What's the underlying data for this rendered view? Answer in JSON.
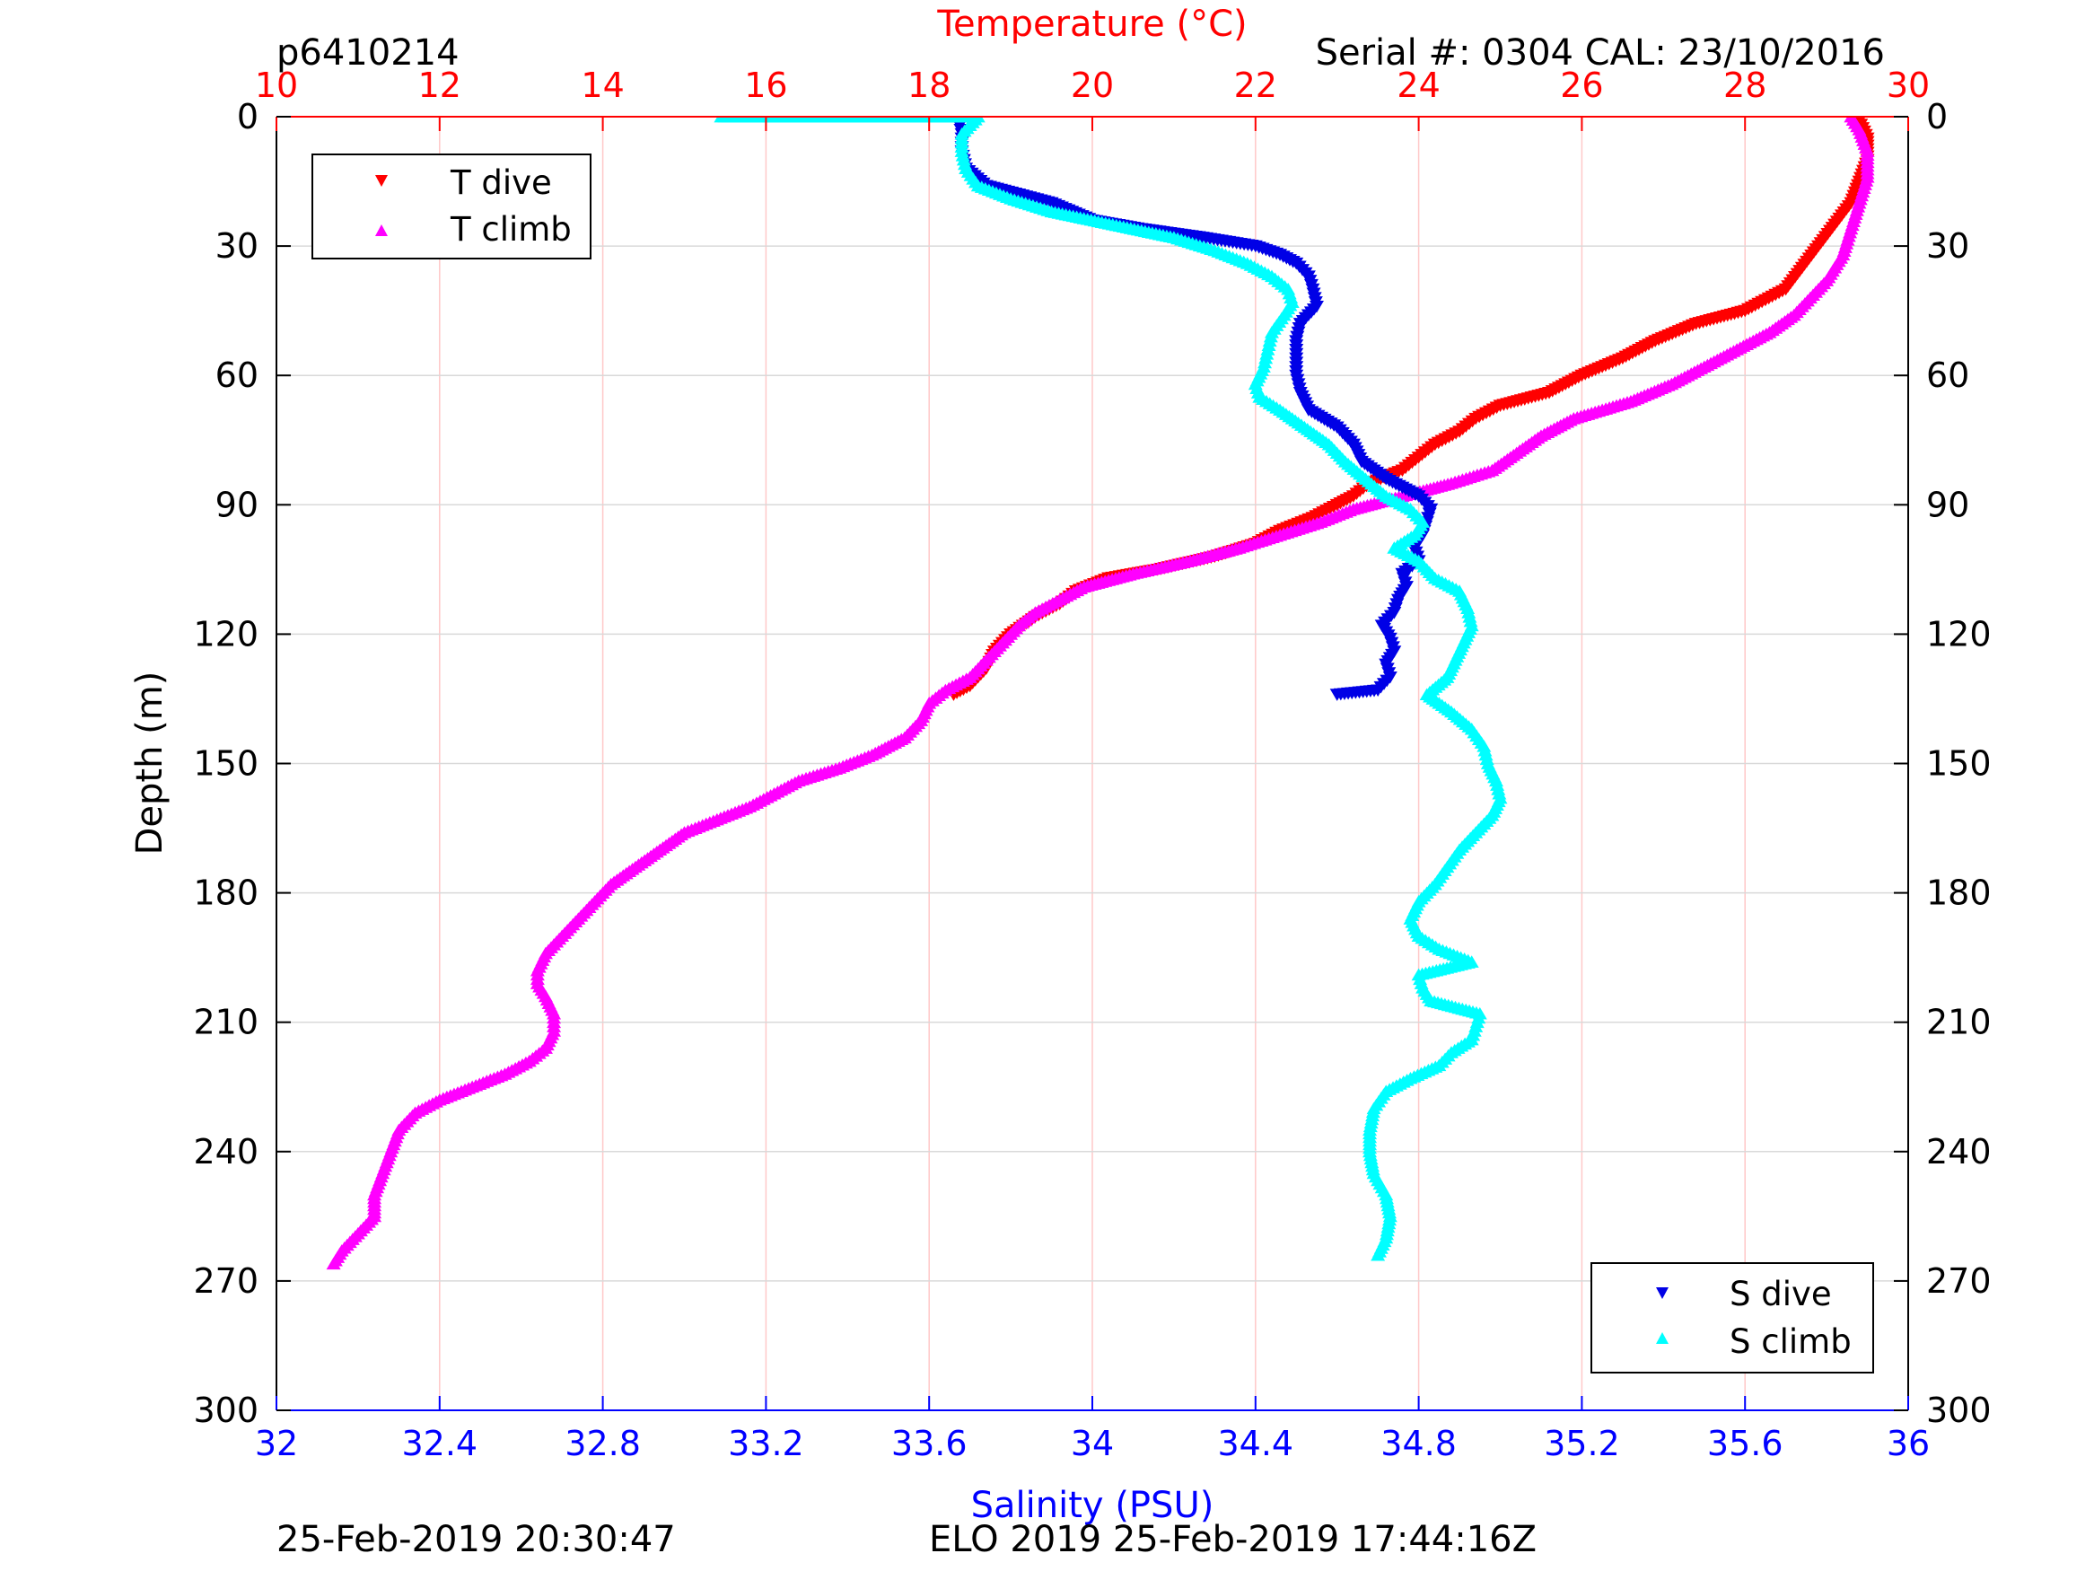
{
  "header": {
    "profile_id": "p6410214",
    "serial_info": "Serial #: 0304  CAL: 23/10/2016"
  },
  "footer": {
    "timestamp_left": "25-Feb-2019 20:30:47",
    "timestamp_right": "ELO 2019 25-Feb-2019 17:44:16Z"
  },
  "colors": {
    "t_dive": "#ff0000",
    "t_climb": "#ff00ff",
    "s_dive": "#0000e6",
    "s_climb": "#00ffff",
    "temperature_axis": "#ff0000",
    "salinity_axis": "#0000ff",
    "grid_depth": "#d9d9d9",
    "grid_temperature": "#ffc8c8"
  },
  "chart_data": {
    "type": "scatter",
    "ylabel": "Depth (m)",
    "ylim": [
      0,
      300
    ],
    "y_reversed": true,
    "yticks": [
      "0",
      "30",
      "60",
      "90",
      "120",
      "150",
      "180",
      "210",
      "240",
      "270",
      "300"
    ],
    "x_top": {
      "label": "Temperature (°C)",
      "range": [
        10,
        30
      ],
      "ticks": [
        "10",
        "12",
        "14",
        "16",
        "18",
        "20",
        "22",
        "24",
        "26",
        "28",
        "30"
      ]
    },
    "x_bottom": {
      "label": "Salinity (PSU)",
      "range": [
        32,
        36
      ],
      "ticks": [
        "32",
        "32.4",
        "32.8",
        "33.2",
        "33.6",
        "34",
        "34.4",
        "34.8",
        "35.2",
        "35.6",
        "36"
      ]
    },
    "grid": "on",
    "legend_top_left": [
      "T dive",
      "T climb"
    ],
    "legend_bottom_right": [
      "S dive",
      "S climb"
    ],
    "series": [
      {
        "name": "T dive",
        "axis": "temperature",
        "marker": "triangle-down",
        "depth": [
          1,
          5,
          10,
          15,
          20,
          25,
          30,
          35,
          40,
          45,
          48,
          52,
          56,
          60,
          64,
          67,
          70,
          73,
          76,
          79,
          82,
          85,
          88,
          90,
          93,
          96,
          99,
          102,
          105,
          107,
          110,
          113,
          116,
          120,
          124,
          128,
          132,
          134
        ],
        "values": [
          29.4,
          29.5,
          29.5,
          29.4,
          29.3,
          29.1,
          28.9,
          28.7,
          28.5,
          28.0,
          27.4,
          26.9,
          26.5,
          26.0,
          25.6,
          25.0,
          24.7,
          24.5,
          24.2,
          24.0,
          23.8,
          23.4,
          23.2,
          23.0,
          22.7,
          22.3,
          22.0,
          21.5,
          20.8,
          20.2,
          19.8,
          19.6,
          19.3,
          19.0,
          18.8,
          18.7,
          18.5,
          18.3
        ]
      },
      {
        "name": "T climb",
        "axis": "temperature",
        "marker": "triangle-up",
        "depth": [
          0,
          3,
          8,
          14,
          20,
          26,
          32,
          38,
          42,
          46,
          50,
          54,
          58,
          62,
          66,
          70,
          74,
          78,
          82,
          85,
          88,
          91,
          94,
          97,
          100,
          103,
          106,
          109,
          112,
          115,
          118,
          122,
          126,
          130,
          133,
          136,
          140,
          144,
          148,
          151,
          154,
          157,
          160,
          163,
          166,
          170,
          174,
          178,
          182,
          186,
          190,
          194,
          198,
          201,
          204,
          208,
          212,
          216,
          219,
          222,
          225,
          228,
          231,
          235,
          240,
          245,
          250,
          255,
          259,
          263,
          266
        ],
        "values": [
          29.3,
          29.4,
          29.5,
          29.5,
          29.4,
          29.3,
          29.2,
          29.0,
          28.8,
          28.6,
          28.3,
          27.9,
          27.5,
          27.1,
          26.6,
          25.9,
          25.5,
          25.2,
          24.9,
          24.4,
          23.8,
          23.2,
          22.8,
          22.3,
          21.8,
          21.2,
          20.5,
          19.9,
          19.6,
          19.3,
          19.1,
          18.9,
          18.7,
          18.5,
          18.2,
          18.0,
          17.9,
          17.7,
          17.3,
          16.9,
          16.4,
          16.1,
          15.8,
          15.4,
          15.0,
          14.7,
          14.4,
          14.1,
          13.9,
          13.7,
          13.5,
          13.3,
          13.2,
          13.2,
          13.3,
          13.4,
          13.4,
          13.3,
          13.1,
          12.8,
          12.4,
          12.0,
          11.7,
          11.5,
          11.4,
          11.3,
          11.2,
          11.2,
          11.0,
          10.8,
          10.7
        ]
      },
      {
        "name": "S dive",
        "axis": "salinity",
        "marker": "triangle-down",
        "depth": [
          0,
          4,
          8,
          12,
          16,
          20,
          24,
          26,
          28,
          30,
          32,
          34,
          37,
          40,
          44,
          48,
          52,
          56,
          60,
          64,
          68,
          72,
          76,
          80,
          84,
          88,
          91,
          94,
          97,
          100,
          103,
          106,
          109,
          112,
          115,
          118,
          121,
          124,
          127,
          130,
          133,
          134
        ],
        "values": [
          33.67,
          33.68,
          33.68,
          33.69,
          33.74,
          33.9,
          34.0,
          34.12,
          34.27,
          34.4,
          34.46,
          34.5,
          34.53,
          34.54,
          34.55,
          34.51,
          34.5,
          34.5,
          34.5,
          34.51,
          34.53,
          34.6,
          34.64,
          34.66,
          34.72,
          34.8,
          34.83,
          34.82,
          34.81,
          34.79,
          34.8,
          34.76,
          34.77,
          34.75,
          34.74,
          34.71,
          34.73,
          34.74,
          34.72,
          34.73,
          34.7,
          34.6
        ]
      },
      {
        "name": "S climb",
        "axis": "salinity",
        "marker": "triangle-up",
        "depth": [
          0,
          0,
          4,
          8,
          12,
          16,
          19,
          22,
          25,
          28,
          31,
          34,
          37,
          40,
          43,
          46,
          50,
          54,
          58,
          62,
          65,
          68,
          72,
          76,
          80,
          84,
          88,
          91,
          94,
          97,
          100,
          103,
          107,
          110,
          114,
          118,
          122,
          126,
          130,
          134,
          138,
          142,
          146,
          150,
          154,
          158,
          162,
          166,
          170,
          174,
          178,
          182,
          186,
          190,
          193,
          196,
          199,
          202,
          205,
          208,
          211,
          214,
          217,
          220,
          223,
          226,
          230,
          235,
          240,
          245,
          250,
          255,
          260,
          264
        ],
        "values": [
          33.09,
          33.72,
          33.68,
          33.68,
          33.69,
          33.72,
          33.8,
          33.9,
          34.05,
          34.2,
          34.3,
          34.38,
          34.44,
          34.48,
          34.49,
          34.47,
          34.44,
          34.43,
          34.42,
          34.4,
          34.41,
          34.46,
          34.52,
          34.58,
          34.62,
          34.67,
          34.72,
          34.78,
          34.81,
          34.79,
          34.74,
          34.8,
          34.84,
          34.9,
          34.92,
          34.93,
          34.91,
          34.89,
          34.87,
          34.82,
          34.88,
          34.93,
          34.96,
          34.97,
          34.99,
          35.0,
          34.98,
          34.94,
          34.9,
          34.87,
          34.84,
          34.8,
          34.78,
          34.8,
          34.85,
          34.93,
          34.8,
          34.81,
          34.83,
          34.95,
          34.94,
          34.93,
          34.88,
          34.85,
          34.78,
          34.72,
          34.69,
          34.68,
          34.68,
          34.69,
          34.72,
          34.73,
          34.72,
          34.7
        ]
      }
    ]
  }
}
